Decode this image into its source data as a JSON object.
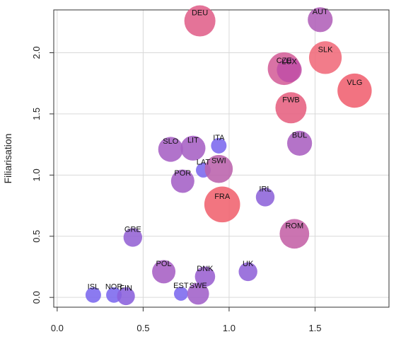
{
  "chart_data": {
    "type": "scatter",
    "title": "",
    "xlabel": "",
    "ylabel": "Filiarisation",
    "xlim": [
      -0.02,
      1.93
    ],
    "ylim": [
      -0.08,
      2.35
    ],
    "grid": true,
    "legend": "none",
    "x_ticks": [
      {
        "value": 0.0,
        "label": "0.0"
      },
      {
        "value": 0.5,
        "label": "0.5"
      },
      {
        "value": 1.0,
        "label": "1.0"
      },
      {
        "value": 1.5,
        "label": "1.5"
      }
    ],
    "y_ticks": [
      {
        "value": 0.0,
        "label": "0.0"
      },
      {
        "value": 0.5,
        "label": "0.5"
      },
      {
        "value": 1.0,
        "label": "1.0"
      },
      {
        "value": 1.5,
        "label": "1.5"
      },
      {
        "value": 2.0,
        "label": "2.0"
      }
    ],
    "points": [
      {
        "label": "ISL",
        "x": 0.21,
        "y": 0.02,
        "size": 1.0,
        "color": "#7b68ee"
      },
      {
        "label": "NOR",
        "x": 0.33,
        "y": 0.02,
        "size": 1.0,
        "color": "#7b68ee"
      },
      {
        "label": "FIN",
        "x": 0.4,
        "y": 0.01,
        "size": 1.15,
        "color": "#8a60dc"
      },
      {
        "label": "EST",
        "x": 0.72,
        "y": 0.03,
        "size": 0.9,
        "color": "#7b68ee"
      },
      {
        "label": "SWE",
        "x": 0.82,
        "y": 0.03,
        "size": 1.4,
        "color": "#a060c8"
      },
      {
        "label": "DNK",
        "x": 0.86,
        "y": 0.17,
        "size": 1.3,
        "color": "#9a60d0"
      },
      {
        "label": "POL",
        "x": 0.62,
        "y": 0.21,
        "size": 1.5,
        "color": "#a65fc4"
      },
      {
        "label": "UK",
        "x": 1.11,
        "y": 0.21,
        "size": 1.2,
        "color": "#8f62d8"
      },
      {
        "label": "GRE",
        "x": 0.44,
        "y": 0.49,
        "size": 1.2,
        "color": "#9462d4"
      },
      {
        "label": "ROM",
        "x": 1.38,
        "y": 0.52,
        "size": 1.9,
        "color": "#c461a6"
      },
      {
        "label": "IRL",
        "x": 1.21,
        "y": 0.82,
        "size": 1.2,
        "color": "#8d63da"
      },
      {
        "label": "FRA",
        "x": 0.96,
        "y": 0.76,
        "size": 2.3,
        "color": "#f0626e"
      },
      {
        "label": "POR",
        "x": 0.73,
        "y": 0.95,
        "size": 1.5,
        "color": "#a460c6"
      },
      {
        "label": "LAT",
        "x": 0.85,
        "y": 1.04,
        "size": 0.95,
        "color": "#7b68ee"
      },
      {
        "label": "SWI",
        "x": 0.94,
        "y": 1.05,
        "size": 1.8,
        "color": "#bb62ac"
      },
      {
        "label": "SLO",
        "x": 0.66,
        "y": 1.21,
        "size": 1.6,
        "color": "#a660c4"
      },
      {
        "label": "LIT",
        "x": 0.79,
        "y": 1.22,
        "size": 1.6,
        "color": "#a660c4"
      },
      {
        "label": "ITA",
        "x": 0.94,
        "y": 1.24,
        "size": 1.0,
        "color": "#7b68ee"
      },
      {
        "label": "BUL",
        "x": 1.41,
        "y": 1.26,
        "size": 1.6,
        "color": "#aa60c0"
      },
      {
        "label": "FWB",
        "x": 1.36,
        "y": 1.55,
        "size": 2.0,
        "color": "#e66080"
      },
      {
        "label": "VLG",
        "x": 1.73,
        "y": 1.69,
        "size": 2.2,
        "color": "#f06070"
      },
      {
        "label": "CZE",
        "x": 1.32,
        "y": 1.87,
        "size": 2.1,
        "color": "#d45f98"
      },
      {
        "label": "LUX",
        "x": 1.35,
        "y": 1.86,
        "size": 1.6,
        "color": "#c04ea6"
      },
      {
        "label": "SLK",
        "x": 1.56,
        "y": 1.96,
        "size": 2.1,
        "color": "#f06a7a"
      },
      {
        "label": "DEU",
        "x": 0.83,
        "y": 2.26,
        "size": 2.0,
        "color": "#e0608a"
      },
      {
        "label": "AUT",
        "x": 1.53,
        "y": 2.27,
        "size": 1.6,
        "color": "#b060b8"
      }
    ]
  }
}
